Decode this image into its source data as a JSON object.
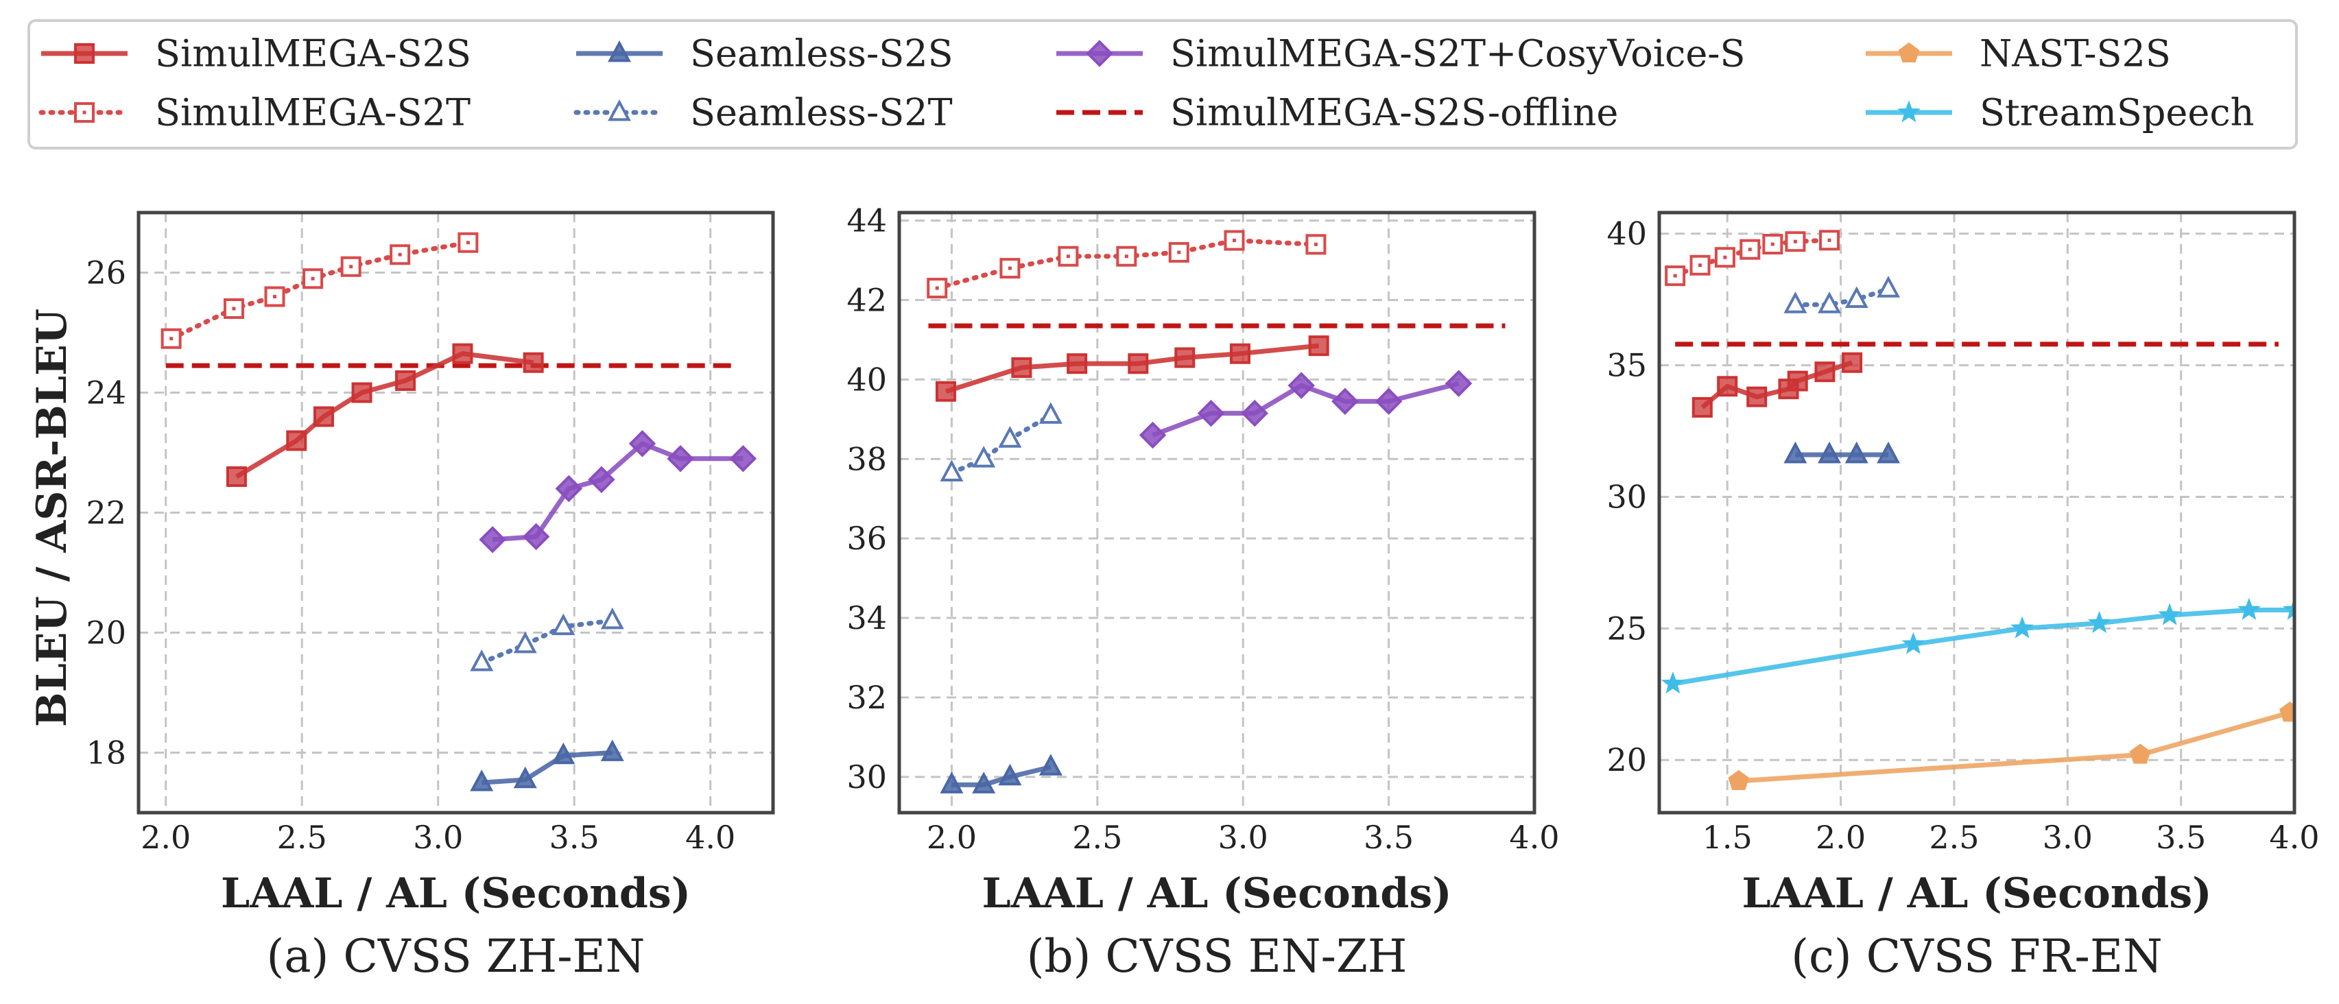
{
  "chart_data": {
    "type": "line",
    "ylabel": "BLEU / ASR-BLEU",
    "legend": {
      "placement": "top",
      "entries": [
        "SimulMEGA-S2S",
        "SimulMEGA-S2T",
        "Seamless-S2S",
        "Seamless-S2T",
        "SimulMEGA-S2T+CosyVoice-S",
        "SimulMEGA-S2S-offline",
        "NAST-S2S",
        "StreamSpeech"
      ]
    },
    "series_styles": {
      "SimulMEGA-S2S": {
        "color": "#cc3333",
        "line": "solid",
        "marker": "square",
        "filled": true
      },
      "SimulMEGA-S2T": {
        "color": "#d94a4a",
        "line": "dotted",
        "marker": "square",
        "filled": false
      },
      "Seamless-S2S": {
        "color": "#4a67a6",
        "line": "solid",
        "marker": "triangle",
        "filled": true
      },
      "Seamless-S2T": {
        "color": "#5a78b4",
        "line": "dotted",
        "marker": "triangle",
        "filled": false
      },
      "SimulMEGA-S2T+CosyVoice-S": {
        "color": "#8a4ec0",
        "line": "solid",
        "marker": "diamond",
        "filled": true
      },
      "SimulMEGA-S2S-offline": {
        "color": "#c01515",
        "line": "dashed",
        "marker": "none",
        "filled": true
      },
      "NAST-S2S": {
        "color": "#eea360",
        "line": "solid",
        "marker": "pentagon",
        "filled": true
      },
      "StreamSpeech": {
        "color": "#3fbde8",
        "line": "solid",
        "marker": "star",
        "filled": true
      }
    },
    "panels": [
      {
        "caption": "(a) CVSS ZH-EN",
        "xlabel": "LAAL / AL (Seconds)",
        "xlim": [
          1.9,
          4.23
        ],
        "ylim": [
          17.0,
          27.0
        ],
        "xticks": [
          "2.0",
          "2.5",
          "3.0",
          "3.5",
          "4.0"
        ],
        "yticks": [
          "18",
          "20",
          "22",
          "24",
          "26"
        ],
        "grid": true,
        "series": [
          {
            "name": "SimulMEGA-S2T",
            "x": [
              2.02,
              2.25,
              2.4,
              2.54,
              2.68,
              2.86,
              3.11
            ],
            "y": [
              24.9,
              25.4,
              25.6,
              25.9,
              26.1,
              26.3,
              26.5
            ]
          },
          {
            "name": "SimulMEGA-S2S-offline",
            "x": [
              2.0,
              4.1
            ],
            "y": [
              24.45,
              24.45
            ]
          },
          {
            "name": "SimulMEGA-S2S",
            "x": [
              2.26,
              2.48,
              2.58,
              2.72,
              2.88,
              3.09,
              3.35
            ],
            "y": [
              22.6,
              23.2,
              23.6,
              24.0,
              24.2,
              24.65,
              24.5
            ]
          },
          {
            "name": "SimulMEGA-S2T+CosyVoice-S",
            "x": [
              3.2,
              3.36,
              3.48,
              3.6,
              3.75,
              3.89,
              4.12
            ],
            "y": [
              21.55,
              21.6,
              22.4,
              22.55,
              23.15,
              22.9,
              22.9
            ]
          },
          {
            "name": "Seamless-S2T",
            "x": [
              3.16,
              3.32,
              3.46,
              3.64
            ],
            "y": [
              19.5,
              19.8,
              20.1,
              20.2
            ]
          },
          {
            "name": "Seamless-S2S",
            "x": [
              3.16,
              3.32,
              3.46,
              3.64
            ],
            "y": [
              17.5,
              17.55,
              17.95,
              18.0
            ]
          }
        ]
      },
      {
        "caption": "(b) CVSS EN-ZH",
        "xlabel": "LAAL / AL (Seconds)",
        "xlim": [
          1.82,
          4.0
        ],
        "ylim": [
          29.1,
          44.2
        ],
        "xticks": [
          "2.0",
          "2.5",
          "3.0",
          "3.5",
          "4.0"
        ],
        "yticks": [
          "30",
          "32",
          "34",
          "36",
          "38",
          "40",
          "42",
          "44"
        ],
        "grid": true,
        "series": [
          {
            "name": "SimulMEGA-S2T",
            "x": [
              1.95,
              2.2,
              2.4,
              2.6,
              2.78,
              2.97,
              3.25
            ],
            "y": [
              42.3,
              42.8,
              43.1,
              43.1,
              43.2,
              43.5,
              43.4
            ]
          },
          {
            "name": "SimulMEGA-S2S-offline",
            "x": [
              1.92,
              3.9
            ],
            "y": [
              41.35,
              41.35
            ]
          },
          {
            "name": "SimulMEGA-S2S",
            "x": [
              1.98,
              2.24,
              2.43,
              2.64,
              2.8,
              2.99,
              3.26
            ],
            "y": [
              39.7,
              40.3,
              40.4,
              40.4,
              40.55,
              40.65,
              40.85
            ]
          },
          {
            "name": "SimulMEGA-S2T+CosyVoice-S",
            "x": [
              2.69,
              2.89,
              3.04,
              3.2,
              3.35,
              3.5,
              3.74
            ],
            "y": [
              38.6,
              39.15,
              39.15,
              39.85,
              39.45,
              39.45,
              39.9
            ]
          },
          {
            "name": "Seamless-S2T",
            "x": [
              2.0,
              2.11,
              2.2,
              2.34
            ],
            "y": [
              37.65,
              38.0,
              38.5,
              39.1
            ]
          },
          {
            "name": "Seamless-S2S",
            "x": [
              2.0,
              2.11,
              2.2,
              2.34
            ],
            "y": [
              29.8,
              29.8,
              30.0,
              30.25
            ]
          }
        ]
      },
      {
        "caption": "(c) CVSS FR-EN",
        "xlabel": "LAAL / AL (Seconds)",
        "xlim": [
          1.2,
          4.0
        ],
        "ylim": [
          18.0,
          40.8
        ],
        "xticks": [
          "1.5",
          "2.0",
          "2.5",
          "3.0",
          "3.5",
          "4.0"
        ],
        "yticks": [
          "20",
          "25",
          "30",
          "35",
          "40"
        ],
        "grid": true,
        "series": [
          {
            "name": "SimulMEGA-S2T",
            "x": [
              1.27,
              1.38,
              1.49,
              1.6,
              1.7,
              1.8,
              1.95
            ],
            "y": [
              38.4,
              38.8,
              39.1,
              39.4,
              39.6,
              39.7,
              39.75
            ]
          },
          {
            "name": "Seamless-S2T",
            "x": [
              1.8,
              1.95,
              2.07,
              2.21
            ],
            "y": [
              37.3,
              37.3,
              37.5,
              37.9
            ]
          },
          {
            "name": "SimulMEGA-S2S-offline",
            "x": [
              1.27,
              3.93
            ],
            "y": [
              35.8,
              35.8
            ]
          },
          {
            "name": "SimulMEGA-S2S",
            "x": [
              1.39,
              1.5,
              1.63,
              1.77,
              1.81,
              1.93,
              2.05
            ],
            "y": [
              33.4,
              34.2,
              33.8,
              34.1,
              34.4,
              34.75,
              35.1
            ]
          },
          {
            "name": "Seamless-S2S",
            "x": [
              1.8,
              1.95,
              2.07,
              2.21
            ],
            "y": [
              31.6,
              31.6,
              31.6,
              31.6
            ]
          },
          {
            "name": "StreamSpeech",
            "x": [
              1.26,
              2.32,
              2.8,
              3.14,
              3.45,
              3.8,
              4.0
            ],
            "y": [
              22.9,
              24.4,
              25.0,
              25.2,
              25.5,
              25.7,
              25.7
            ]
          },
          {
            "name": "NAST-S2S",
            "x": [
              1.55,
              3.32,
              3.98
            ],
            "y": [
              19.2,
              20.2,
              21.8
            ]
          }
        ]
      }
    ]
  }
}
